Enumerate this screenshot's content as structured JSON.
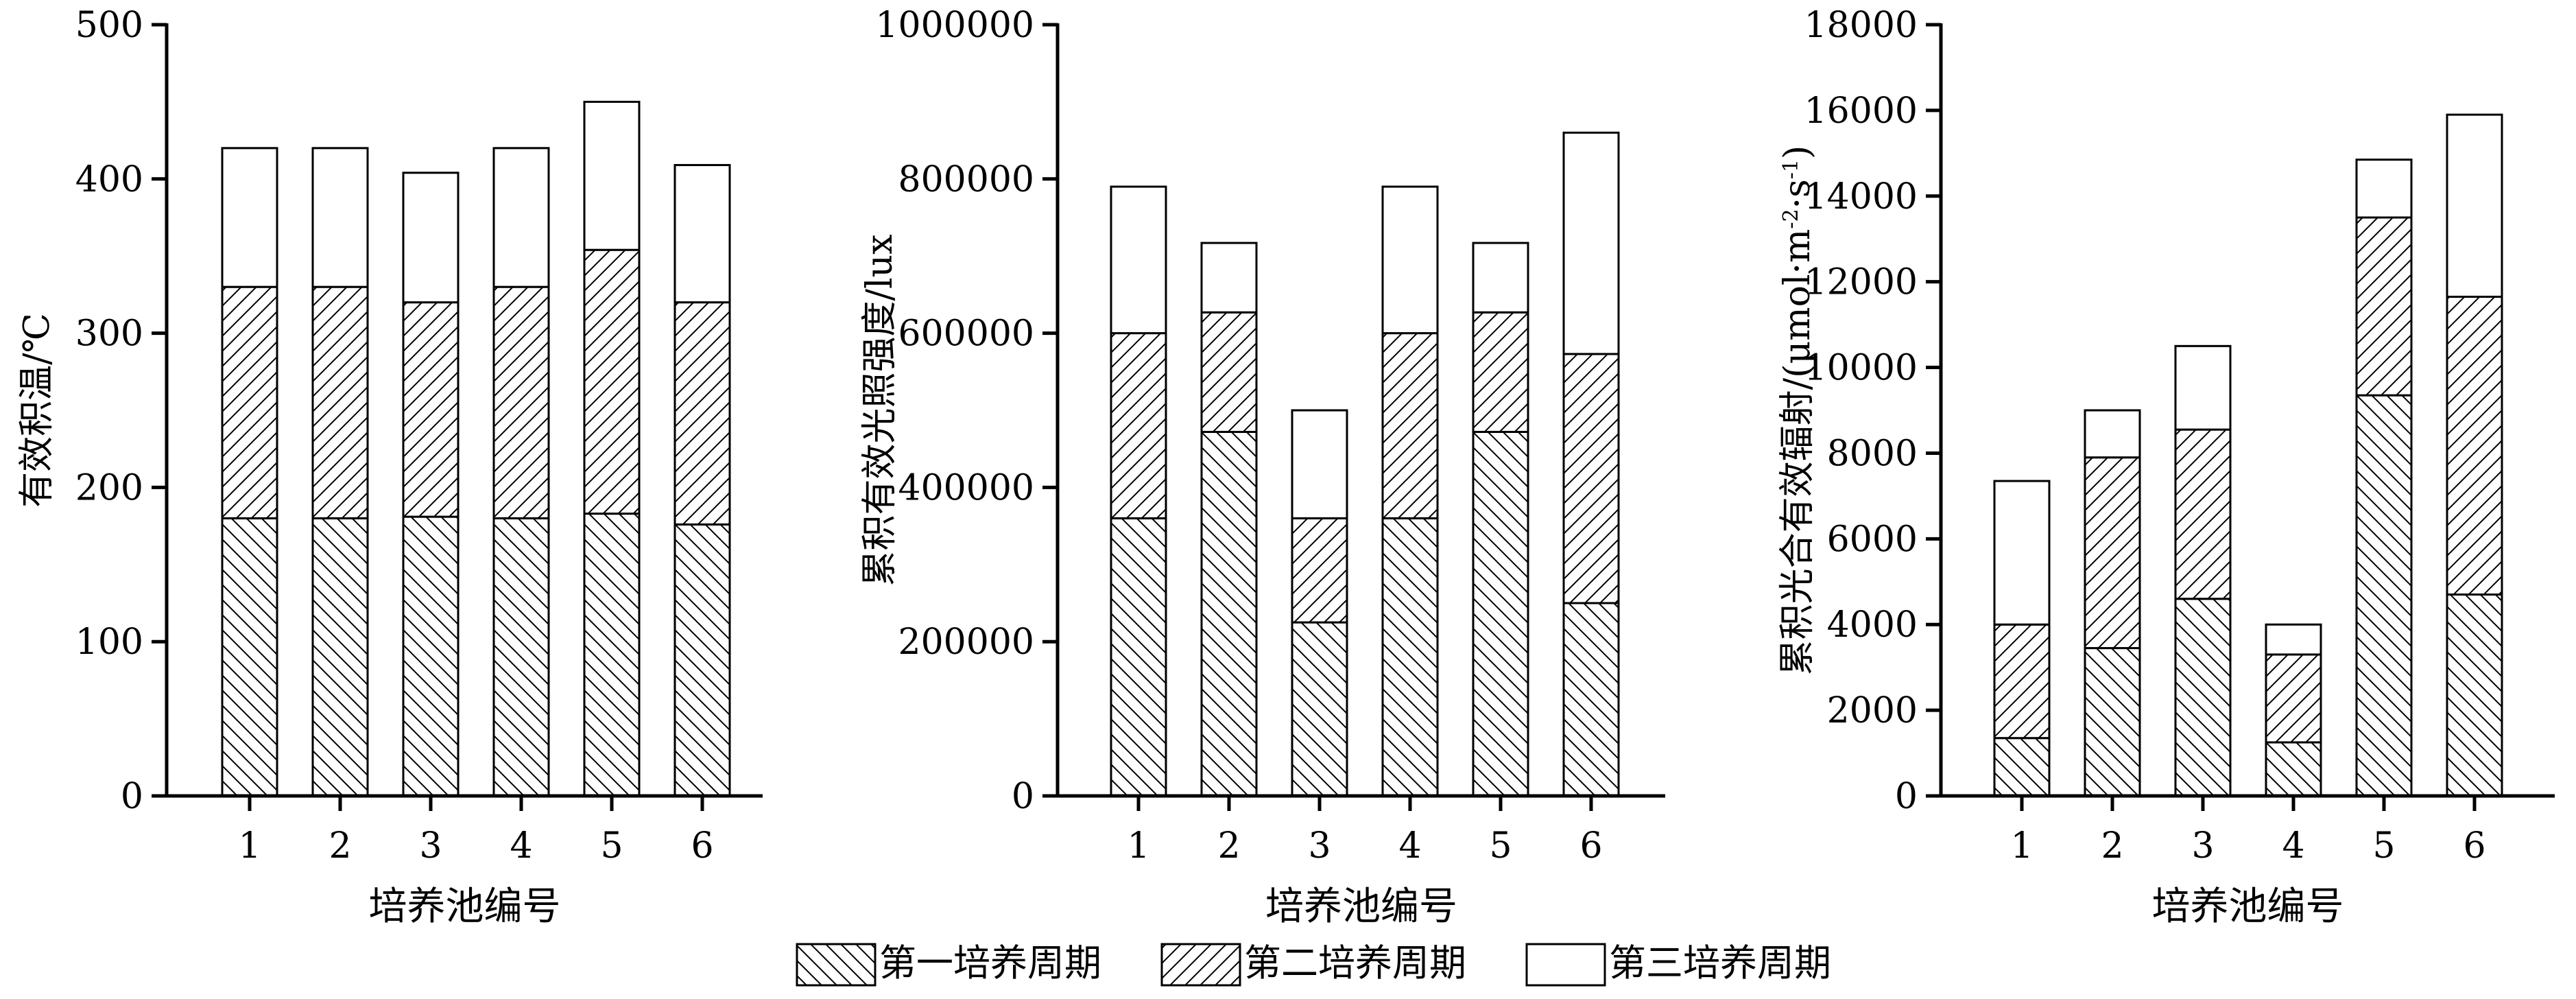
{
  "legend": [
    {
      "label": "第一培养周期",
      "pattern": "back-hatch"
    },
    {
      "label": "第二培养周期",
      "pattern": "fwd-hatch"
    },
    {
      "label": "第三培养周期",
      "pattern": "none"
    }
  ],
  "chart_data": [
    {
      "type": "bar",
      "stacked": true,
      "categories": [
        "1",
        "2",
        "3",
        "4",
        "5",
        "6"
      ],
      "xlabel": "培养池编号",
      "ylabel": "有效积温/℃",
      "ylim": [
        0,
        500
      ],
      "yticks": [
        "0",
        "100",
        "200",
        "300",
        "400",
        "500"
      ],
      "series": [
        {
          "name": "第一培养周期",
          "values": [
            180,
            180,
            181,
            180,
            183,
            176
          ]
        },
        {
          "name": "第二培养周期",
          "values": [
            150,
            150,
            139,
            150,
            171,
            144
          ]
        },
        {
          "name": "第三培养周期",
          "values": [
            90,
            90,
            84,
            90,
            96,
            89
          ]
        }
      ]
    },
    {
      "type": "bar",
      "stacked": true,
      "categories": [
        "1",
        "2",
        "3",
        "4",
        "5",
        "6"
      ],
      "xlabel": "培养池编号",
      "ylabel": "累积有效光照强度/lux",
      "ylim": [
        0,
        1000000
      ],
      "yticks": [
        "0",
        "200000",
        "400000",
        "600000",
        "800000",
        "1000000"
      ],
      "series": [
        {
          "name": "第一培养周期",
          "values": [
            360000,
            472000,
            225000,
            360000,
            472000,
            250000
          ]
        },
        {
          "name": "第二培养周期",
          "values": [
            240000,
            155000,
            135000,
            240000,
            155000,
            323000
          ]
        },
        {
          "name": "第三培养周期",
          "values": [
            190000,
            90000,
            140000,
            190000,
            90000,
            287000
          ]
        }
      ]
    },
    {
      "type": "bar",
      "stacked": true,
      "categories": [
        "1",
        "2",
        "3",
        "4",
        "5",
        "6"
      ],
      "xlabel": "培养池编号",
      "ylabel_main": "累积光合有效辐射/(μmol·m",
      "ylabel_sup1": "-2",
      "ylabel_mid": "·s",
      "ylabel_sup2": "-1",
      "ylabel_end": ")",
      "ylim": [
        0,
        18000
      ],
      "yticks": [
        "0",
        "2000",
        "4000",
        "6000",
        "8000",
        "10000",
        "12000",
        "14000",
        "16000",
        "18000"
      ],
      "series": [
        {
          "name": "第一培养周期",
          "values": [
            1350,
            3450,
            4600,
            1250,
            9350,
            4700
          ]
        },
        {
          "name": "第二培养周期",
          "values": [
            2650,
            4450,
            3950,
            2050,
            4150,
            6950
          ]
        },
        {
          "name": "第三培养周期",
          "values": [
            3350,
            1100,
            1950,
            700,
            1350,
            4250
          ]
        }
      ]
    }
  ]
}
